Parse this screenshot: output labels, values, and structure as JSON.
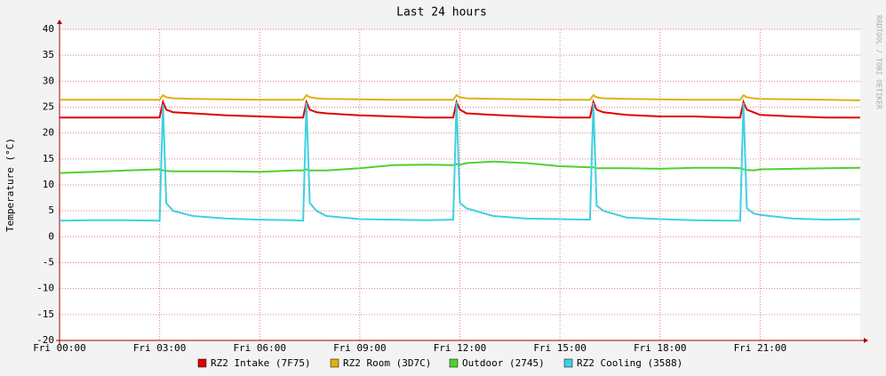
{
  "chart_data": {
    "type": "line",
    "title": "Last 24 hours",
    "y_label": "Temperature (°C)",
    "watermark": "RRDTOOL / TOBI OETIKER",
    "grid": true,
    "x": [
      0,
      1,
      2,
      3.0,
      3.1,
      3.2,
      3.4,
      4,
      5,
      6,
      7,
      7.3,
      7.4,
      7.5,
      7.7,
      8,
      9,
      10,
      11,
      11.8,
      11.9,
      12.0,
      12.2,
      13,
      14,
      15,
      15.9,
      16.0,
      16.1,
      16.3,
      17,
      18,
      19,
      20,
      20.4,
      20.5,
      20.6,
      20.8,
      21,
      22,
      23,
      24
    ],
    "xlim": [
      0,
      24
    ],
    "xticks": [
      {
        "value": 0,
        "label": "Fri 00:00"
      },
      {
        "value": 3,
        "label": "Fri 03:00"
      },
      {
        "value": 6,
        "label": "Fri 06:00"
      },
      {
        "value": 9,
        "label": "Fri 09:00"
      },
      {
        "value": 12,
        "label": "Fri 12:00"
      },
      {
        "value": 15,
        "label": "Fri 15:00"
      },
      {
        "value": 18,
        "label": "Fri 18:00"
      },
      {
        "value": 21,
        "label": "Fri 21:00"
      }
    ],
    "ylim": [
      -20,
      40
    ],
    "yticks": [
      -20,
      -15,
      -10,
      -5,
      0,
      5,
      10,
      15,
      20,
      25,
      30,
      35,
      40
    ],
    "series": [
      {
        "name": "RZ2 Intake (7F75)",
        "color": "#e00000",
        "values": [
          23,
          23,
          23,
          23,
          26,
          24.5,
          24,
          23.8,
          23.4,
          23.2,
          23,
          23,
          26,
          24.5,
          24,
          23.8,
          23.4,
          23.2,
          23,
          23,
          26,
          24.5,
          23.8,
          23.5,
          23.2,
          23,
          23,
          26,
          24.5,
          24,
          23.5,
          23.2,
          23.2,
          23,
          23,
          26,
          24.5,
          24,
          23.5,
          23.2,
          23,
          23
        ]
      },
      {
        "name": "RZ2 Room (3D7C)",
        "color": "#e0b010",
        "values": [
          26.4,
          26.4,
          26.4,
          26.4,
          27.3,
          26.9,
          26.7,
          26.6,
          26.5,
          26.4,
          26.4,
          26.4,
          27.3,
          26.9,
          26.7,
          26.6,
          26.5,
          26.4,
          26.4,
          26.4,
          27.3,
          26.9,
          26.7,
          26.6,
          26.5,
          26.4,
          26.4,
          27.3,
          26.9,
          26.7,
          26.6,
          26.5,
          26.4,
          26.4,
          26.4,
          27.3,
          26.9,
          26.7,
          26.6,
          26.5,
          26.4,
          26.3
        ]
      },
      {
        "name": "Outdoor (2745)",
        "color": "#50d030",
        "values": [
          12.3,
          12.5,
          12.8,
          13,
          12.8,
          12.7,
          12.6,
          12.6,
          12.6,
          12.5,
          12.8,
          12.8,
          13,
          12.8,
          12.8,
          12.8,
          13.2,
          13.8,
          13.9,
          13.8,
          14,
          13.9,
          14.2,
          14.5,
          14.2,
          13.6,
          13.4,
          13.4,
          13.2,
          13.2,
          13.2,
          13.1,
          13.3,
          13.3,
          13.2,
          13,
          12.9,
          12.8,
          13,
          13.1,
          13.2,
          13.3
        ]
      },
      {
        "name": "RZ2 Cooling (3588)",
        "color": "#40d0e0",
        "values": [
          3.1,
          3.2,
          3.2,
          3.1,
          25.5,
          6.5,
          5,
          4,
          3.5,
          3.3,
          3.2,
          3.1,
          25.8,
          6.5,
          5,
          4,
          3.4,
          3.3,
          3.2,
          3.3,
          26,
          6.5,
          5.5,
          4,
          3.5,
          3.4,
          3.3,
          25.8,
          6,
          5,
          3.7,
          3.4,
          3.2,
          3.1,
          3.1,
          25.8,
          5.5,
          4.5,
          4.2,
          3.5,
          3.3,
          3.4
        ]
      }
    ]
  }
}
